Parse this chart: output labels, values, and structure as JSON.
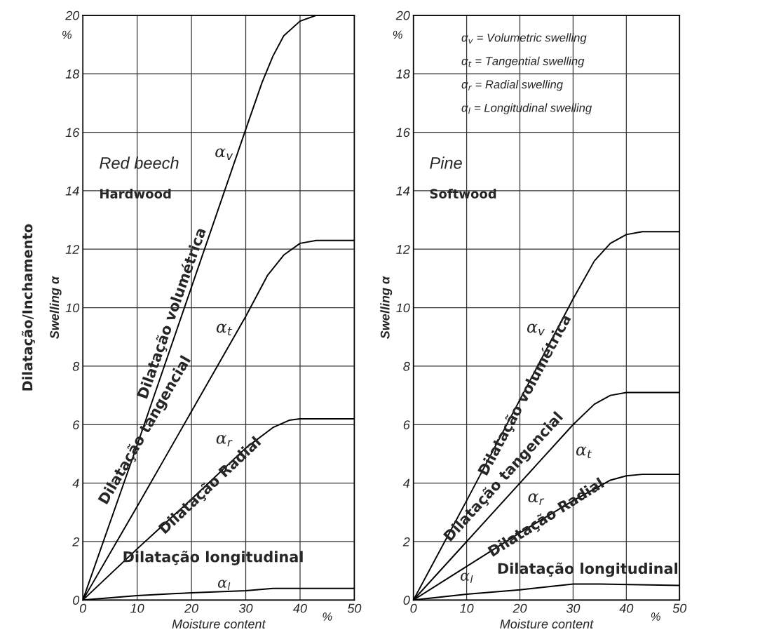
{
  "chart_data": [
    {
      "type": "line",
      "xlabel": "Moisture content",
      "ylabel": "Swelling α",
      "xlim": [
        0,
        50
      ],
      "ylim": [
        0,
        20
      ],
      "xticks": [
        0,
        10,
        20,
        30,
        40,
        50
      ],
      "yticks": [
        0,
        2,
        4,
        6,
        8,
        10,
        12,
        14,
        16,
        18,
        20
      ],
      "grid": true,
      "line_style": "solid",
      "marker": "none",
      "series": [
        {
          "color": "#000000",
          "x": [
            0,
            10,
            20,
            30,
            33,
            35,
            37,
            40,
            43,
            50
          ],
          "values": [
            0,
            5.3,
            10.7,
            16.1,
            17.7,
            18.6,
            19.3,
            19.8,
            20,
            20
          ]
        },
        {
          "color": "#000000",
          "x": [
            0,
            10,
            20,
            30,
            34,
            37,
            40,
            43,
            50
          ],
          "values": [
            0,
            3.2,
            6.45,
            9.7,
            11.1,
            11.8,
            12.2,
            12.3,
            12.3
          ]
        },
        {
          "color": "#000000",
          "x": [
            0,
            10,
            20,
            30,
            35,
            38,
            40,
            50
          ],
          "values": [
            0,
            1.75,
            3.45,
            5.2,
            5.9,
            6.15,
            6.2,
            6.2
          ]
        },
        {
          "color": "#000000",
          "x": [
            0,
            10,
            20,
            30,
            35,
            50
          ],
          "values": [
            0,
            0.15,
            0.25,
            0.32,
            0.4,
            0.4
          ]
        }
      ],
      "annotations": [
        "Red beech",
        "Hardwood",
        "Dilatação/Inchamento",
        "%",
        "%",
        "α$_{v}$",
        "α$_{t}$",
        "α$_{r}$",
        "α$_{l}$",
        "Dilatação volumétrica",
        "Dilatação tangencial",
        "Dilatação Radial",
        "Dilatação longitudinal"
      ]
    },
    {
      "type": "line",
      "xlabel": "Moisture content",
      "ylabel": "Swelling α",
      "xlim": [
        0,
        50
      ],
      "ylim": [
        0,
        20
      ],
      "xticks": [
        0,
        10,
        20,
        30,
        40,
        50
      ],
      "yticks": [
        0,
        2,
        4,
        6,
        8,
        10,
        12,
        14,
        16,
        18,
        20
      ],
      "grid": true,
      "line_style": "solid",
      "marker": "none",
      "series": [
        {
          "color": "#000000",
          "x": [
            0,
            10,
            20,
            30,
            34,
            37,
            40,
            43,
            50
          ],
          "values": [
            0,
            3.4,
            6.85,
            10.3,
            11.6,
            12.2,
            12.5,
            12.6,
            12.6
          ]
        },
        {
          "color": "#000000",
          "x": [
            0,
            10,
            20,
            30,
            34,
            37,
            40,
            50
          ],
          "values": [
            0,
            2.0,
            4.0,
            6.0,
            6.7,
            7.0,
            7.1,
            7.1
          ]
        },
        {
          "color": "#000000",
          "x": [
            0,
            10,
            20,
            30,
            35,
            37,
            40,
            43,
            50
          ],
          "values": [
            0,
            1.15,
            2.3,
            3.4,
            3.9,
            4.1,
            4.25,
            4.3,
            4.3
          ]
        },
        {
          "color": "#000000",
          "x": [
            0,
            10,
            20,
            30,
            35,
            50
          ],
          "values": [
            0,
            0.2,
            0.35,
            0.55,
            0.55,
            0.5
          ]
        }
      ],
      "annotations": [
        "α$_{v}$ = Volumetric swelling",
        "α$_{t}$ = Tangential swelling",
        "α$_{r}$ = Radial swelling",
        "α$_{l}$ = Longitudinal swelling",
        "Pine",
        "Softwood",
        "%",
        "%",
        "α$_{v}$",
        "α$_{t}$",
        "α$_{r}$",
        "α$_{l}$",
        "Dilatação volumétrica",
        "Dilatação tangencial",
        "Dilatação Radial",
        "Dilatação longitudinal"
      ]
    }
  ]
}
